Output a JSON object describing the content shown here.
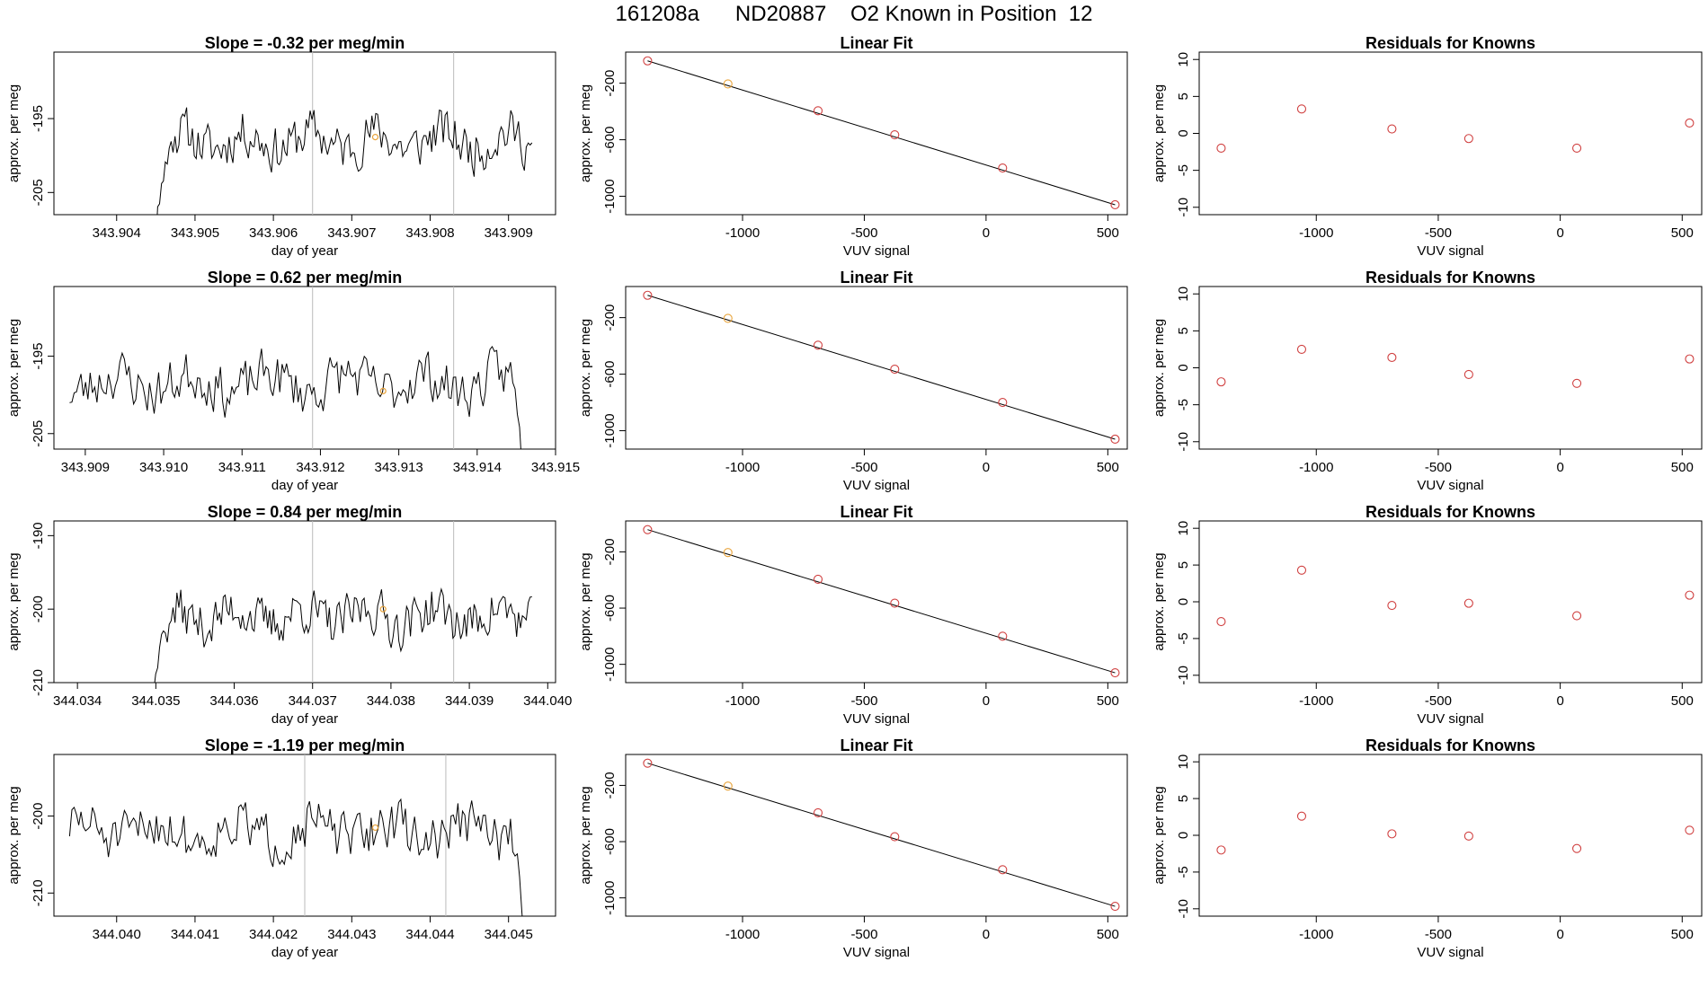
{
  "page": {
    "title": "161208a      ND20887    O2 Known in Position  12"
  },
  "colors": {
    "line": "#000000",
    "known": "#d04040",
    "highlight": "#e8a33a",
    "vline": "#bbbbbb"
  },
  "chart_data": [
    {
      "type": "line",
      "title": "Slope =  -0.32  per meg/min",
      "xlabel": "day of year",
      "ylabel": "approx. per meg",
      "xlim": [
        343.9032,
        343.9096
      ],
      "ylim": [
        -208,
        -186
      ],
      "xticks": [
        343.904,
        343.905,
        343.906,
        343.907,
        343.908,
        343.909
      ],
      "xtick_labels": [
        "343.904",
        "343.905",
        "343.906",
        "343.907",
        "343.908",
        "343.909"
      ],
      "yticks": [
        -205,
        -195
      ],
      "ytick_labels": [
        "-205",
        "-195"
      ],
      "x_start": 343.9044,
      "x_end": 343.9093,
      "n_points": 200,
      "base": -198,
      "amplitude": 4.5,
      "early_dip": -14,
      "seed": 11,
      "vlines": [
        343.9065,
        343.9083
      ],
      "marker": {
        "x": 343.9073,
        "y": -197.5
      }
    },
    {
      "type": "line",
      "title": "Slope =  0.62  per meg/min",
      "xlabel": "day of year",
      "ylabel": "approx. per meg",
      "xlim": [
        343.9086,
        343.915
      ],
      "ylim": [
        -207,
        -186
      ],
      "xticks": [
        343.909,
        343.91,
        343.911,
        343.912,
        343.913,
        343.914,
        343.915
      ],
      "xtick_labels": [
        "343.909",
        "343.910",
        "343.911",
        "343.912",
        "343.913",
        "343.914",
        "343.915"
      ],
      "yticks": [
        -205,
        -195
      ],
      "ytick_labels": [
        "-205",
        "-195"
      ],
      "x_start": 343.9088,
      "x_end": 343.9146,
      "n_points": 200,
      "base": -198.5,
      "amplitude": 4.5,
      "late_dip": -12,
      "seed": 23,
      "vlines": [
        343.9119,
        343.9137
      ],
      "marker": {
        "x": 343.9128,
        "y": -199.5
      }
    },
    {
      "type": "line",
      "title": "Slope =  0.84  per meg/min",
      "xlabel": "day of year",
      "ylabel": "approx. per meg",
      "xlim": [
        344.0337,
        344.0401
      ],
      "ylim": [
        -210,
        -188
      ],
      "xticks": [
        344.034,
        344.035,
        344.036,
        344.037,
        344.038,
        344.039,
        344.04
      ],
      "xtick_labels": [
        "344.034",
        "344.035",
        "344.036",
        "344.037",
        "344.038",
        "344.039",
        "344.040"
      ],
      "yticks": [
        -210,
        -200,
        -190
      ],
      "ytick_labels": [
        "-210",
        "-200",
        "-190"
      ],
      "x_start": 344.0349,
      "x_end": 344.0398,
      "n_points": 200,
      "base": -201,
      "amplitude": 4.5,
      "early_dip": -10,
      "seed": 37,
      "vlines": [
        344.037,
        344.0388
      ],
      "marker": {
        "x": 344.0379,
        "y": -200
      }
    },
    {
      "type": "line",
      "title": "Slope =  -1.19  per meg/min",
      "xlabel": "day of year",
      "ylabel": "approx. per meg",
      "xlim": [
        344.0392,
        344.0456
      ],
      "ylim": [
        -213,
        -192
      ],
      "xticks": [
        344.04,
        344.041,
        344.042,
        344.043,
        344.044,
        344.045
      ],
      "xtick_labels": [
        "344.040",
        "344.041",
        "344.042",
        "344.043",
        "344.044",
        "344.045"
      ],
      "yticks": [
        -210,
        -200
      ],
      "ytick_labels": [
        "-210",
        "-200"
      ],
      "x_start": 344.0394,
      "x_end": 344.0452,
      "n_points": 200,
      "base": -202,
      "amplitude": 4.5,
      "late_dip": -12,
      "seed": 51,
      "vlines": [
        344.0424,
        344.0442
      ],
      "marker": {
        "x": 344.0433,
        "y": -201.5
      }
    },
    {
      "type": "scatter",
      "title": "Linear Fit",
      "xlabel": "VUV signal",
      "ylabel": "approx. per meg",
      "xlim": [
        -1480,
        580
      ],
      "ylim": [
        -1130,
        20
      ],
      "xticks": [
        -1000,
        -500,
        0,
        500
      ],
      "xtick_labels": [
        "-1000",
        "-500",
        "0",
        "500"
      ],
      "yticks": [
        -1000,
        -600,
        -200
      ],
      "ytick_labels": [
        "-1000",
        "-600",
        "-200"
      ],
      "x": [
        -1390,
        -1060,
        -690,
        -375,
        68,
        530
      ],
      "y": [
        -42,
        -205,
        -395,
        -565,
        -800,
        -1060
      ],
      "fit": {
        "x": [
          -1390,
          530
        ],
        "y": [
          -42,
          -1060
        ]
      },
      "highlight_index": 1
    },
    {
      "type": "scatter",
      "title": "Linear Fit",
      "xlabel": "VUV signal",
      "ylabel": "approx. per meg",
      "xlim": [
        -1480,
        580
      ],
      "ylim": [
        -1130,
        20
      ],
      "xticks": [
        -1000,
        -500,
        0,
        500
      ],
      "xtick_labels": [
        "-1000",
        "-500",
        "0",
        "500"
      ],
      "yticks": [
        -1000,
        -600,
        -200
      ],
      "ytick_labels": [
        "-1000",
        "-600",
        "-200"
      ],
      "x": [
        -1390,
        -1060,
        -690,
        -375,
        68,
        530
      ],
      "y": [
        -42,
        -205,
        -395,
        -565,
        -800,
        -1060
      ],
      "fit": {
        "x": [
          -1390,
          530
        ],
        "y": [
          -42,
          -1060
        ]
      },
      "highlight_index": 1
    },
    {
      "type": "scatter",
      "title": "Linear Fit",
      "xlabel": "VUV signal",
      "ylabel": "approx. per meg",
      "xlim": [
        -1480,
        580
      ],
      "ylim": [
        -1130,
        20
      ],
      "xticks": [
        -1000,
        -500,
        0,
        500
      ],
      "xtick_labels": [
        "-1000",
        "-500",
        "0",
        "500"
      ],
      "yticks": [
        -1000,
        -600,
        -200
      ],
      "ytick_labels": [
        "-1000",
        "-600",
        "-200"
      ],
      "x": [
        -1390,
        -1060,
        -690,
        -375,
        68,
        530
      ],
      "y": [
        -42,
        -205,
        -395,
        -565,
        -800,
        -1060
      ],
      "fit": {
        "x": [
          -1390,
          530
        ],
        "y": [
          -42,
          -1060
        ]
      },
      "highlight_index": 1
    },
    {
      "type": "scatter",
      "title": "Linear Fit",
      "xlabel": "VUV signal",
      "ylabel": "approx. per meg",
      "xlim": [
        -1480,
        580
      ],
      "ylim": [
        -1130,
        20
      ],
      "xticks": [
        -1000,
        -500,
        0,
        500
      ],
      "xtick_labels": [
        "-1000",
        "-500",
        "0",
        "500"
      ],
      "yticks": [
        -1000,
        -600,
        -200
      ],
      "ytick_labels": [
        "-1000",
        "-600",
        "-200"
      ],
      "x": [
        -1390,
        -1060,
        -690,
        -375,
        68,
        530
      ],
      "y": [
        -42,
        -205,
        -395,
        -565,
        -800,
        -1060
      ],
      "fit": {
        "x": [
          -1390,
          530
        ],
        "y": [
          -42,
          -1060
        ]
      },
      "highlight_index": 1
    },
    {
      "type": "scatter",
      "title": "Residuals for Knowns",
      "xlabel": "VUV signal",
      "ylabel": "approx. per meg",
      "xlim": [
        -1480,
        580
      ],
      "ylim": [
        -11,
        11
      ],
      "xticks": [
        -1000,
        -500,
        0,
        500
      ],
      "xtick_labels": [
        "-1000",
        "-500",
        "0",
        "500"
      ],
      "yticks": [
        -10,
        -5,
        0,
        5,
        10
      ],
      "ytick_labels": [
        "-10",
        "-5",
        "0",
        "5",
        "10"
      ],
      "x": [
        -1390,
        -1060,
        -690,
        -375,
        68,
        530
      ],
      "y": [
        -2.0,
        3.3,
        0.6,
        -0.7,
        -2.0,
        1.4
      ]
    },
    {
      "type": "scatter",
      "title": "Residuals for Knowns",
      "xlabel": "VUV signal",
      "ylabel": "approx. per meg",
      "xlim": [
        -1480,
        580
      ],
      "ylim": [
        -11,
        11
      ],
      "xticks": [
        -1000,
        -500,
        0,
        500
      ],
      "xtick_labels": [
        "-1000",
        "-500",
        "0",
        "500"
      ],
      "yticks": [
        -10,
        -5,
        0,
        5,
        10
      ],
      "ytick_labels": [
        "-10",
        "-5",
        "0",
        "5",
        "10"
      ],
      "x": [
        -1390,
        -1060,
        -690,
        -375,
        68,
        530
      ],
      "y": [
        -1.9,
        2.5,
        1.4,
        -0.9,
        -2.1,
        1.2
      ]
    },
    {
      "type": "scatter",
      "title": "Residuals for Knowns",
      "xlabel": "VUV signal",
      "ylabel": "approx. per meg",
      "xlim": [
        -1480,
        580
      ],
      "ylim": [
        -11,
        11
      ],
      "xticks": [
        -1000,
        -500,
        0,
        500
      ],
      "xtick_labels": [
        "-1000",
        "-500",
        "0",
        "500"
      ],
      "yticks": [
        -10,
        -5,
        0,
        5,
        10
      ],
      "ytick_labels": [
        "-10",
        "-5",
        "0",
        "5",
        "10"
      ],
      "x": [
        -1390,
        -1060,
        -690,
        -375,
        68,
        530
      ],
      "y": [
        -2.7,
        4.3,
        -0.5,
        -0.2,
        -1.9,
        0.9
      ]
    },
    {
      "type": "scatter",
      "title": "Residuals for Knowns",
      "xlabel": "VUV signal",
      "ylabel": "approx. per meg",
      "xlim": [
        -1480,
        580
      ],
      "ylim": [
        -11,
        11
      ],
      "xticks": [
        -1000,
        -500,
        0,
        500
      ],
      "xtick_labels": [
        "-1000",
        "-500",
        "0",
        "500"
      ],
      "yticks": [
        -10,
        -5,
        0,
        5,
        10
      ],
      "ytick_labels": [
        "-10",
        "-5",
        "0",
        "5",
        "10"
      ],
      "x": [
        -1390,
        -1060,
        -690,
        -375,
        68,
        530
      ],
      "y": [
        -2.0,
        2.6,
        0.2,
        -0.1,
        -1.8,
        0.7
      ]
    }
  ]
}
